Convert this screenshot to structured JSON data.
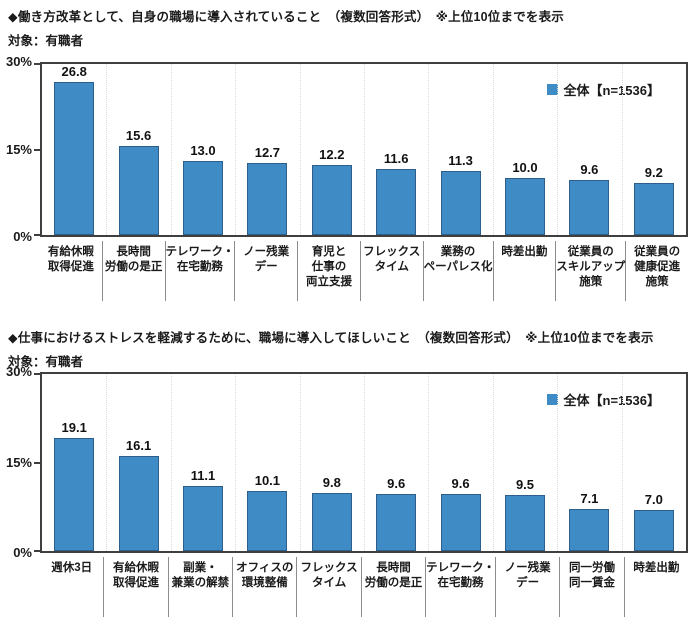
{
  "colors": {
    "bar_fill": "#3E8BC6",
    "bar_border": "#2E5F8A",
    "plot_border": "#3F3F3F",
    "gridline": "#DBDBDB",
    "separator": "#8C8C8C"
  },
  "chart_data": [
    {
      "type": "bar",
      "title": "◆働き方改革として、自身の職場に導入されていること　（複数回答形式）　※上位10位までを表示",
      "subtitle": "対象：有職者",
      "legend": "全体【n=1536】",
      "legend_position": "top-right-inside",
      "grid": "vertical-dotted",
      "ylim": [
        0,
        30
      ],
      "yticks": [
        "30%",
        "15%",
        "0%"
      ],
      "categories": [
        [
          "有給休暇",
          "取得促進"
        ],
        [
          "長時間",
          "労働の是正"
        ],
        [
          "テレワーク・",
          "在宅勤務"
        ],
        [
          "ノー残業",
          "デー"
        ],
        [
          "育児と",
          "仕事の",
          "両立支援"
        ],
        [
          "フレックス",
          "タイム"
        ],
        [
          "業務の",
          "ペーパレス化"
        ],
        [
          "時差出勤"
        ],
        [
          "従業員の",
          "スキルアップ",
          "施策"
        ],
        [
          "従業員の",
          "健康促進",
          "施策"
        ]
      ],
      "values": [
        26.8,
        15.6,
        13.0,
        12.7,
        12.2,
        11.6,
        11.3,
        10.0,
        9.6,
        9.2
      ]
    },
    {
      "type": "bar",
      "title": "◆仕事におけるストレスを軽減するために、職場に導入してほしいこと　（複数回答形式）　※上位10位までを表示",
      "subtitle": "対象：有職者",
      "legend": "全体【n=1536】",
      "legend_position": "top-right-inside",
      "grid": "vertical-dotted",
      "ylim": [
        0,
        30
      ],
      "yticks": [
        "30%",
        "15%",
        "0%"
      ],
      "categories": [
        [
          "週休3日"
        ],
        [
          "有給休暇",
          "取得促進"
        ],
        [
          "副業・",
          "兼業の解禁"
        ],
        [
          "オフィスの",
          "環境整備"
        ],
        [
          "フレックス",
          "タイム"
        ],
        [
          "長時間",
          "労働の是正"
        ],
        [
          "テレワーク・",
          "在宅勤務"
        ],
        [
          "ノー残業",
          "デー"
        ],
        [
          "同一労働",
          "同一賃金"
        ],
        [
          "時差出勤"
        ]
      ],
      "values": [
        19.1,
        16.1,
        11.1,
        10.1,
        9.8,
        9.6,
        9.6,
        9.5,
        7.1,
        7.0
      ]
    }
  ]
}
